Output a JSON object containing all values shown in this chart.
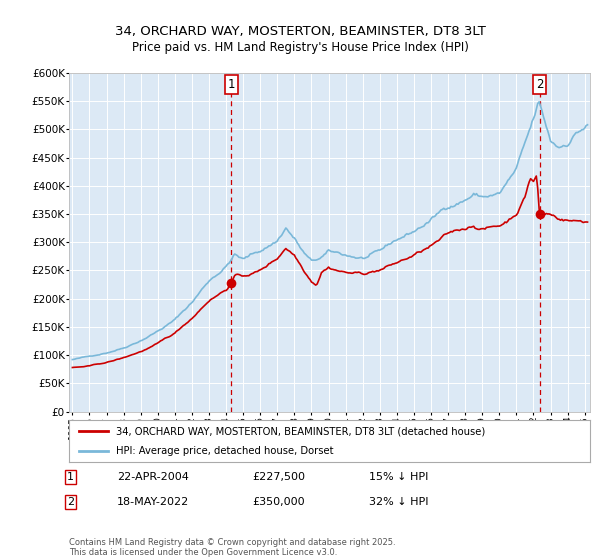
{
  "title_line1": "34, ORCHARD WAY, MOSTERTON, BEAMINSTER, DT8 3LT",
  "title_line2": "Price paid vs. HM Land Registry's House Price Index (HPI)",
  "fig_facecolor": "#ffffff",
  "plot_bg_color": "#dce9f5",
  "grid_color": "#ffffff",
  "hpi_color": "#7ab8d9",
  "price_color": "#cc0000",
  "ylim": [
    0,
    600000
  ],
  "yticks": [
    0,
    50000,
    100000,
    150000,
    200000,
    250000,
    300000,
    350000,
    400000,
    450000,
    500000,
    550000,
    600000
  ],
  "legend_label_price": "34, ORCHARD WAY, MOSTERTON, BEAMINSTER, DT8 3LT (detached house)",
  "legend_label_hpi": "HPI: Average price, detached house, Dorset",
  "transaction1_date": "22-APR-2004",
  "transaction1_price": "£227,500",
  "transaction1_hpi": "15% ↓ HPI",
  "transaction2_date": "18-MAY-2022",
  "transaction2_price": "£350,000",
  "transaction2_hpi": "32% ↓ HPI",
  "footnote": "Contains HM Land Registry data © Crown copyright and database right 2025.\nThis data is licensed under the Open Government Licence v3.0.",
  "transaction1_x": 2004.3,
  "transaction2_x": 2022.37,
  "transaction1_price_val": 227500,
  "transaction2_price_val": 350000,
  "xmin": 1994.8,
  "xmax": 2025.3
}
